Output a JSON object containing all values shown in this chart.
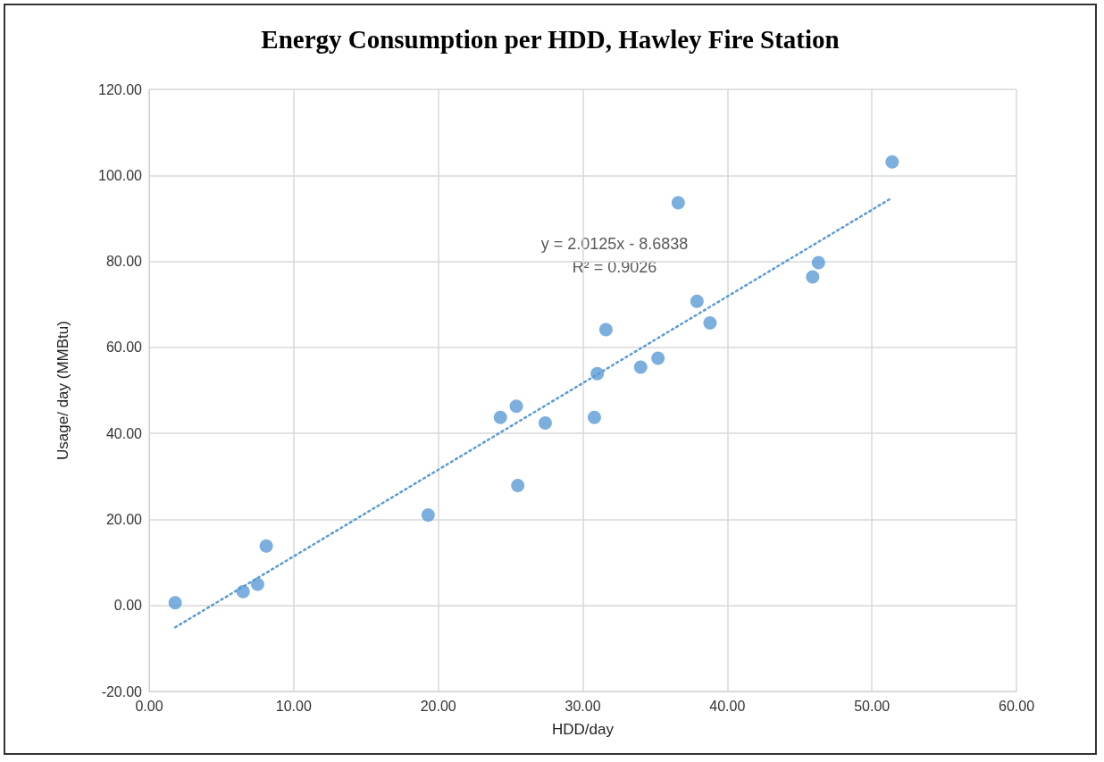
{
  "chart_data": {
    "type": "scatter",
    "title": "Energy Consumption per HDD, Hawley Fire Station",
    "xlabel": "HDD/day",
    "ylabel": "Usage/ day (MMBtu)",
    "annotations": [
      "y = 2.0125x - 8.6838",
      "R² = 0.9026"
    ],
    "series": [
      {
        "color": "#5b9bd5",
        "marker": "circle",
        "x": [
          1.8,
          6.5,
          7.5,
          8.1,
          19.3,
          24.3,
          25.4,
          27.4,
          25.5,
          30.8,
          31.0,
          31.6,
          34.0,
          35.2,
          36.6,
          37.9,
          38.8,
          45.9,
          46.3,
          51.4
        ],
        "values": [
          0.6,
          3.2,
          4.9,
          13.8,
          21.0,
          43.7,
          46.3,
          42.4,
          27.9,
          43.7,
          53.9,
          64.1,
          55.4,
          57.5,
          93.6,
          70.7,
          65.7,
          76.4,
          79.7,
          103.1
        ]
      },
      {
        "type": "line",
        "color": "#5b9bd5",
        "line_style": "dotted",
        "marker": "none",
        "x": [
          1.8,
          51.4
        ],
        "values": [
          -5.1,
          94.8
        ]
      }
    ],
    "xlim": [
      0,
      60
    ],
    "ylim": [
      -20,
      120
    ],
    "xticks": [
      {
        "value": 0,
        "label": "0.00"
      },
      {
        "value": 10,
        "label": "10.00"
      },
      {
        "value": 20,
        "label": "20.00"
      },
      {
        "value": 30,
        "label": "30.00"
      },
      {
        "value": 40,
        "label": "40.00"
      },
      {
        "value": 50,
        "label": "50.00"
      },
      {
        "value": 60,
        "label": "60.00"
      }
    ],
    "yticks": [
      {
        "value": -20,
        "label": "-20.00"
      },
      {
        "value": 0,
        "label": "0.00"
      },
      {
        "value": 20,
        "label": "20.00"
      },
      {
        "value": 40,
        "label": "40.00"
      },
      {
        "value": 60,
        "label": "60.00"
      },
      {
        "value": 80,
        "label": "80.00"
      },
      {
        "value": 100,
        "label": "100.00"
      },
      {
        "value": 120,
        "label": "120.00"
      }
    ],
    "grid": true
  }
}
